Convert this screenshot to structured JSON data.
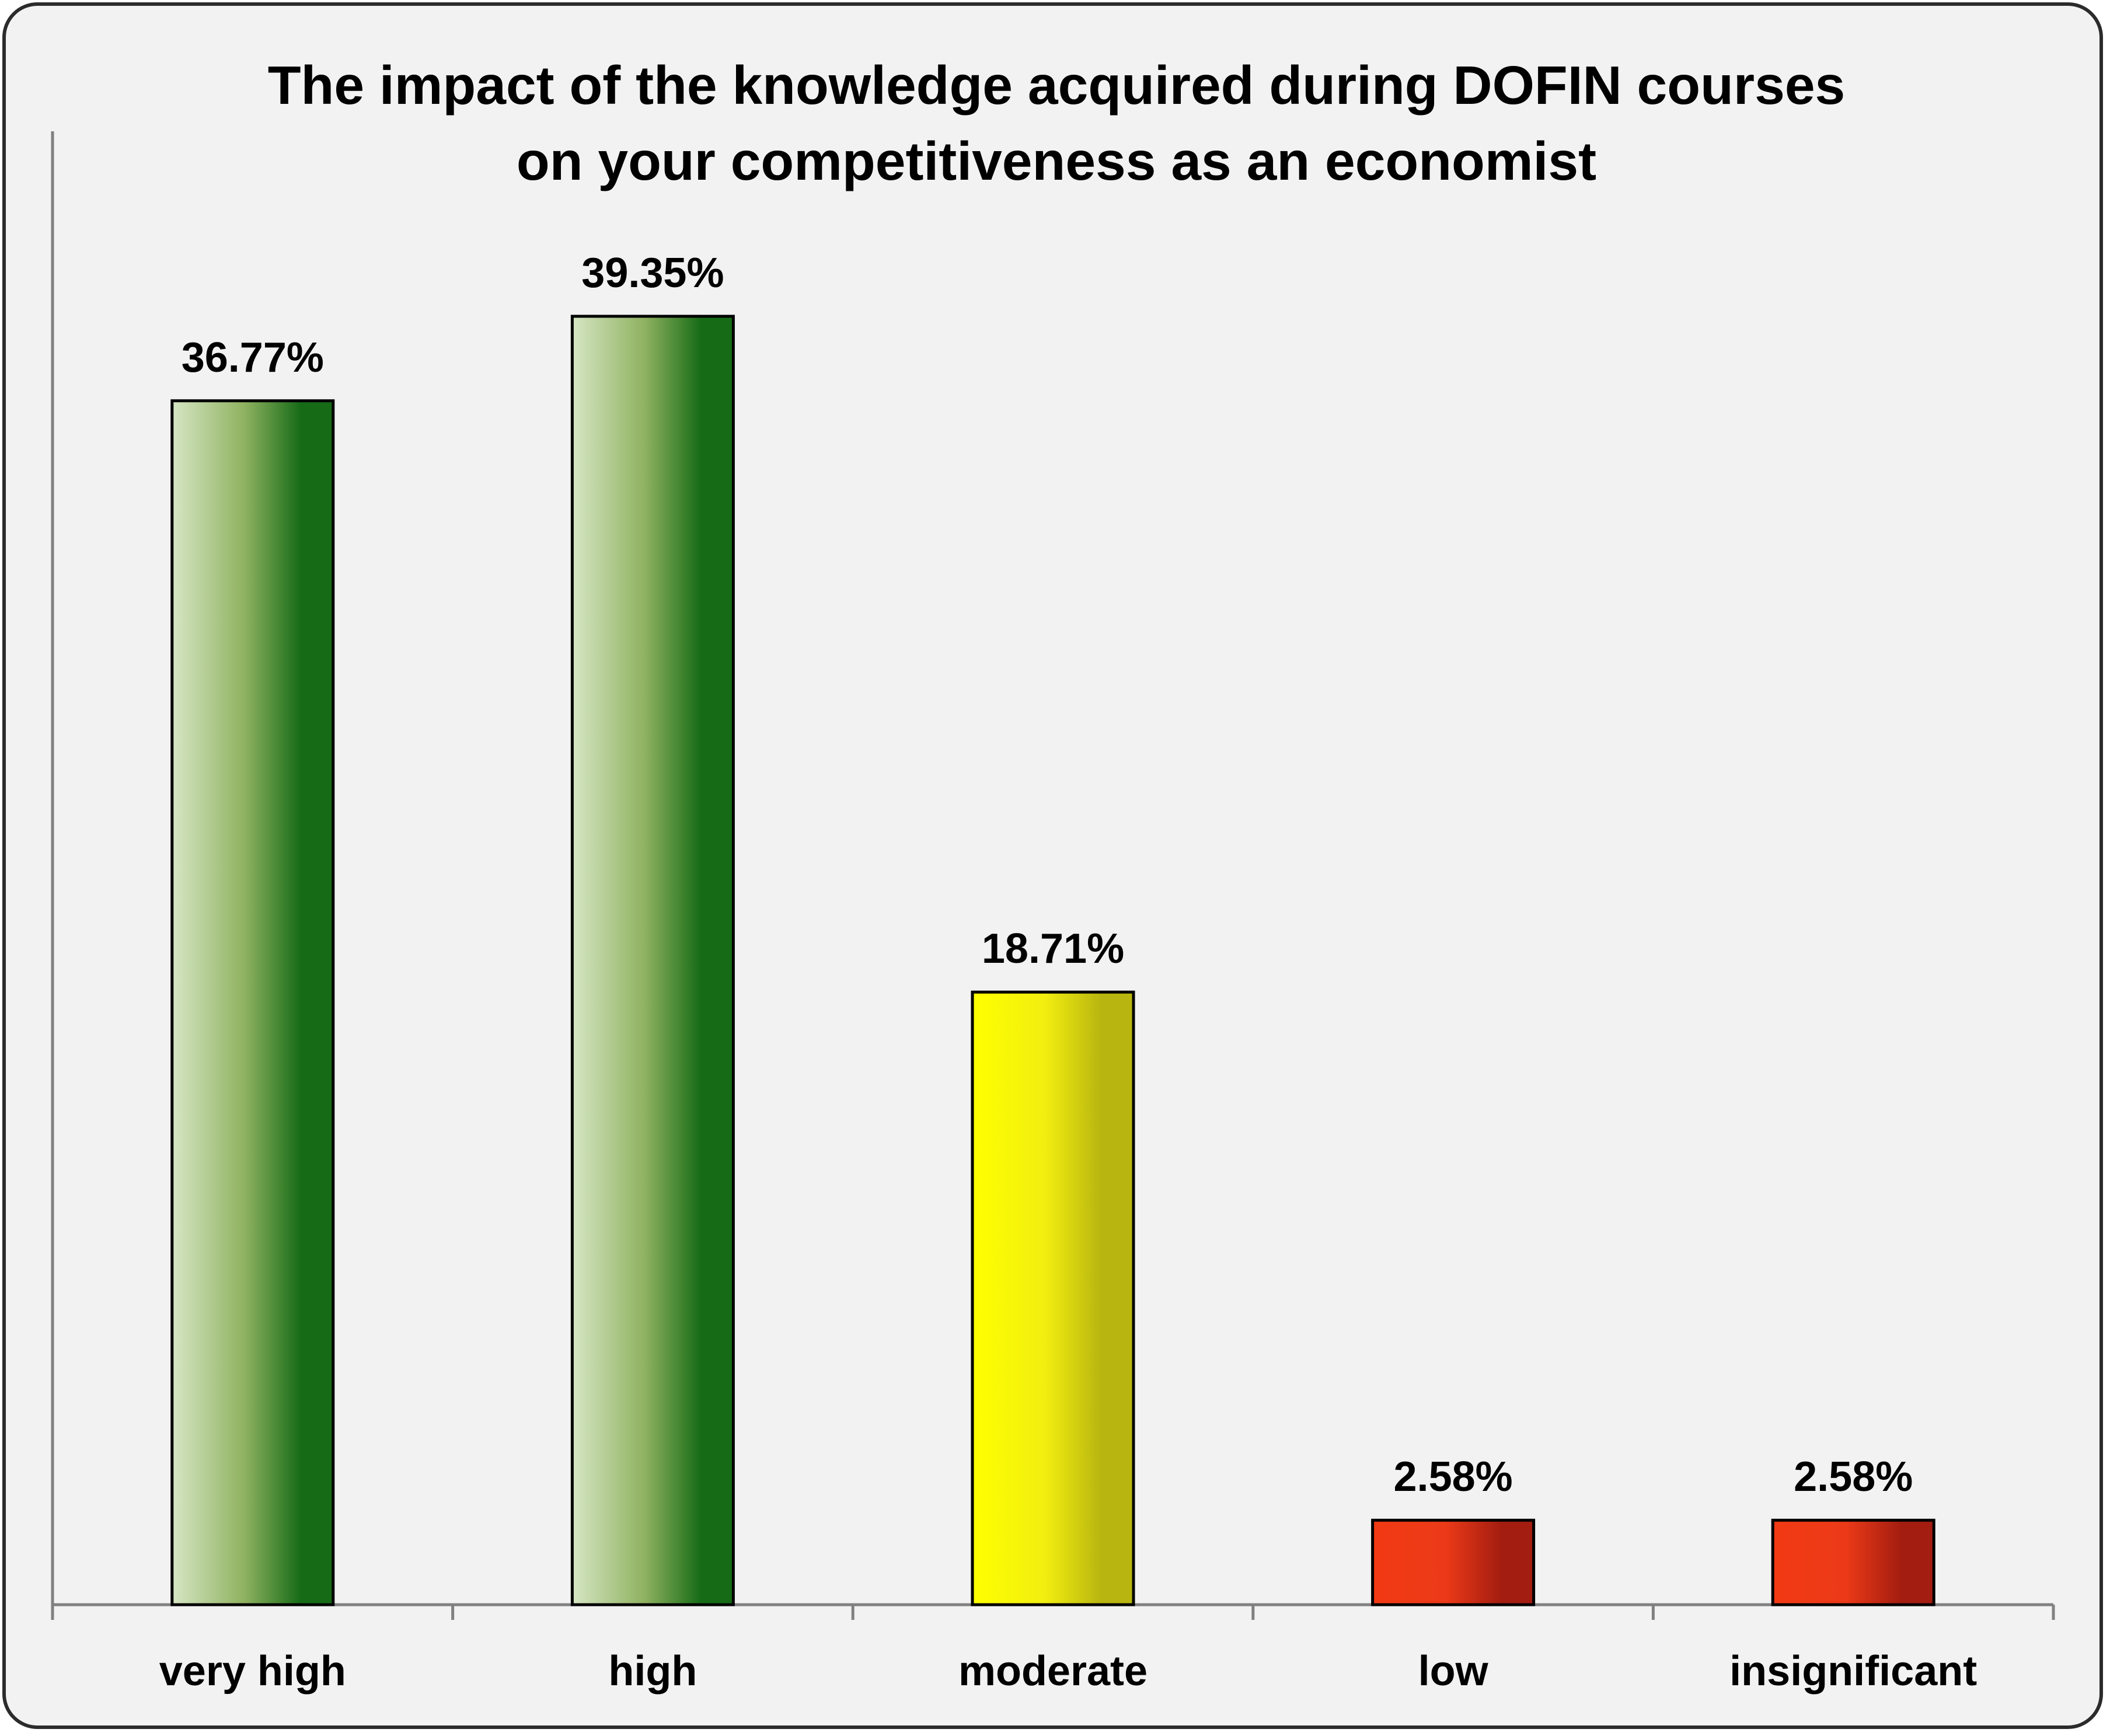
{
  "chart_data": {
    "type": "bar",
    "title_lines": [
      "The impact of the knowledge acquired during DOFIN courses",
      "on your competitiveness as an economist"
    ],
    "xlabel": "",
    "ylabel": "",
    "categories": [
      "very high",
      "high",
      "moderate",
      "low",
      "insignificant"
    ],
    "values": [
      36.77,
      39.35,
      18.71,
      2.58,
      2.58
    ],
    "data_labels": [
      "36.77%",
      "39.35%",
      "18.71%",
      "2.58%",
      "2.58%"
    ],
    "unit": "%",
    "ylim": [
      0,
      45
    ],
    "grid": false,
    "legend": "none",
    "bar_colors": [
      [
        "#d6e6c4",
        "#8fb260",
        "#166b16"
      ],
      [
        "#d6e6c4",
        "#8fb260",
        "#166b16"
      ],
      [
        "#ffff00",
        "#f2ee10",
        "#b8b510"
      ],
      [
        "#f23a14",
        "#ec3a18",
        "#a31d10"
      ],
      [
        "#f23a14",
        "#ec3a18",
        "#a31d10"
      ]
    ]
  }
}
